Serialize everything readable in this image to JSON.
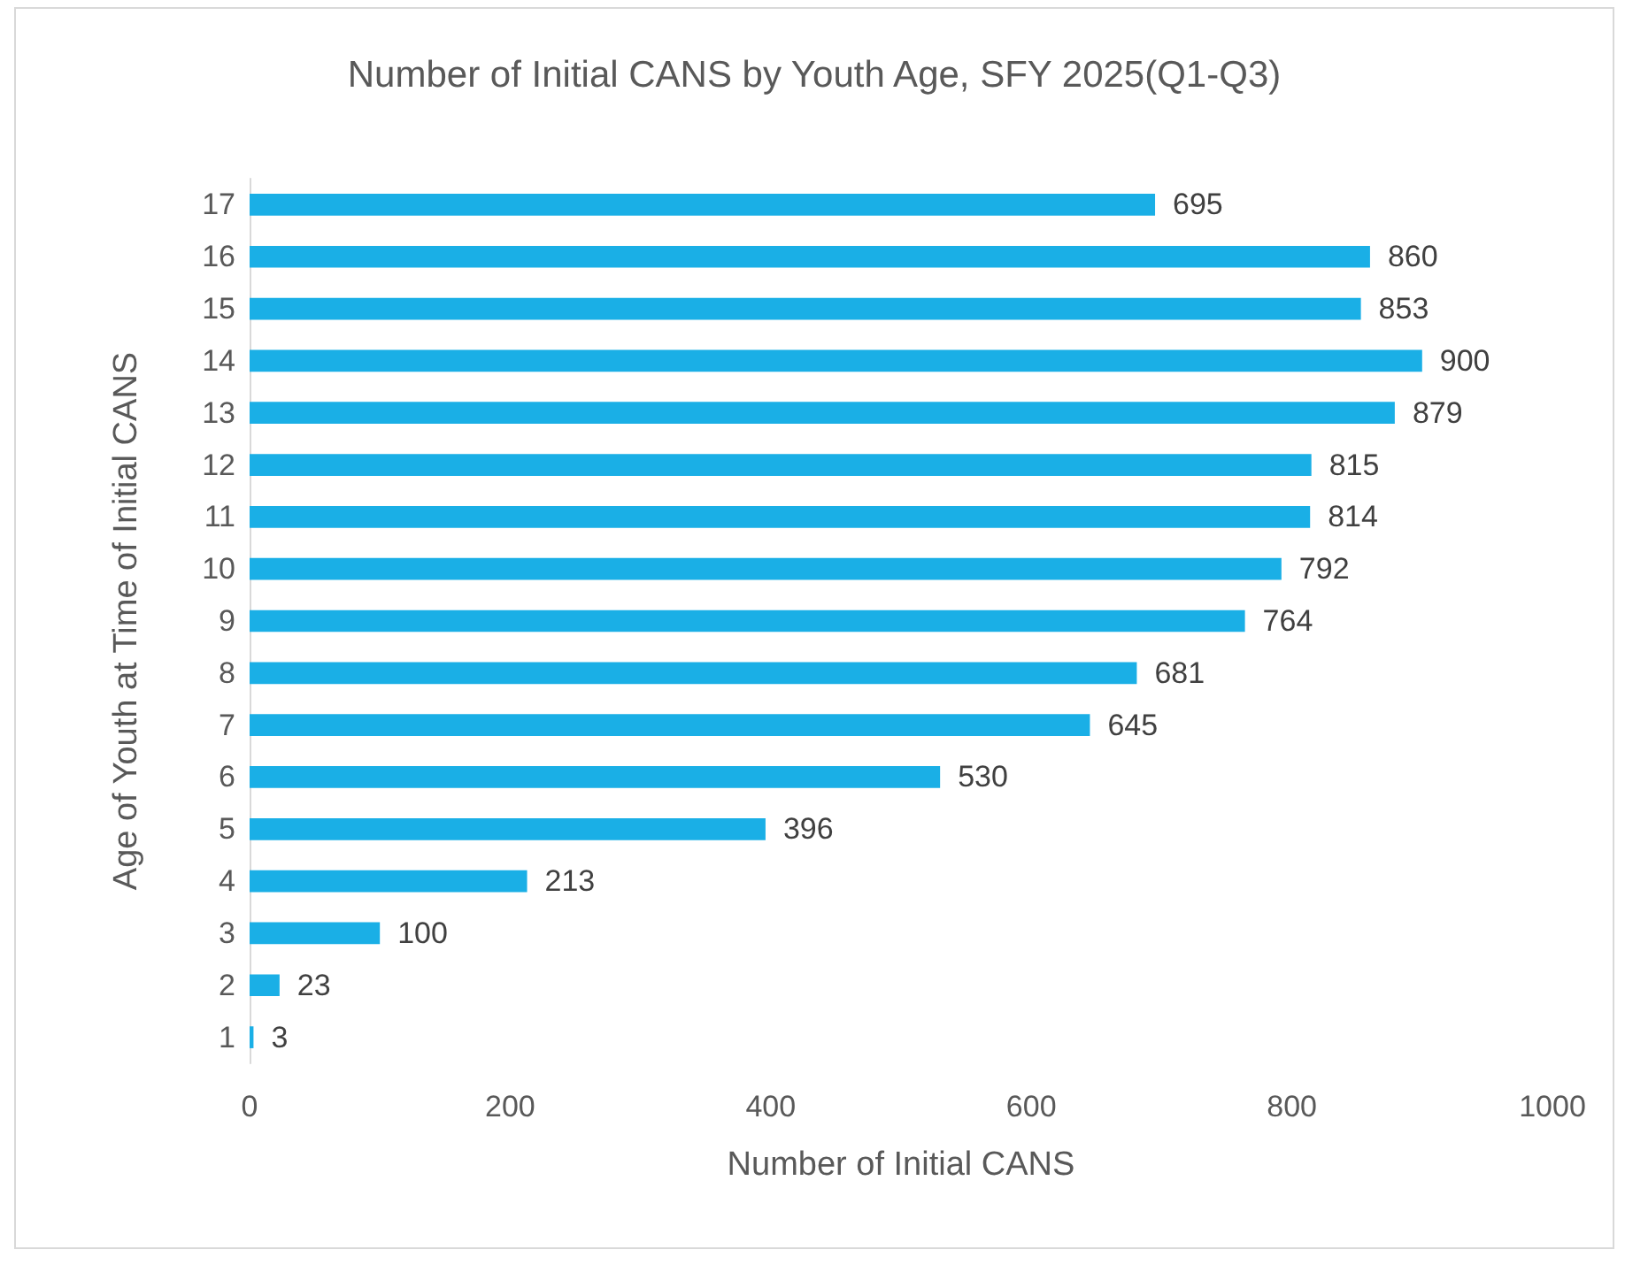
{
  "chart_data": {
    "type": "bar",
    "orientation": "horizontal",
    "title": "Number of Initial CANS by Youth Age, SFY 2025(Q1-Q3)",
    "xlabel": "Number of Initial CANS",
    "ylabel": "Age of Youth at Time of Initial CANS",
    "categories": [
      "17",
      "16",
      "15",
      "14",
      "13",
      "12",
      "11",
      "10",
      "9",
      "8",
      "7",
      "6",
      "5",
      "4",
      "3",
      "2",
      "1"
    ],
    "values": [
      695,
      860,
      853,
      900,
      879,
      815,
      814,
      792,
      764,
      681,
      645,
      530,
      396,
      213,
      100,
      23,
      3
    ],
    "color": "#1aafe6",
    "xlim": [
      0,
      1000
    ],
    "xticks": [
      0,
      200,
      400,
      600,
      800,
      1000
    ],
    "grid": false,
    "data_labels": true
  }
}
